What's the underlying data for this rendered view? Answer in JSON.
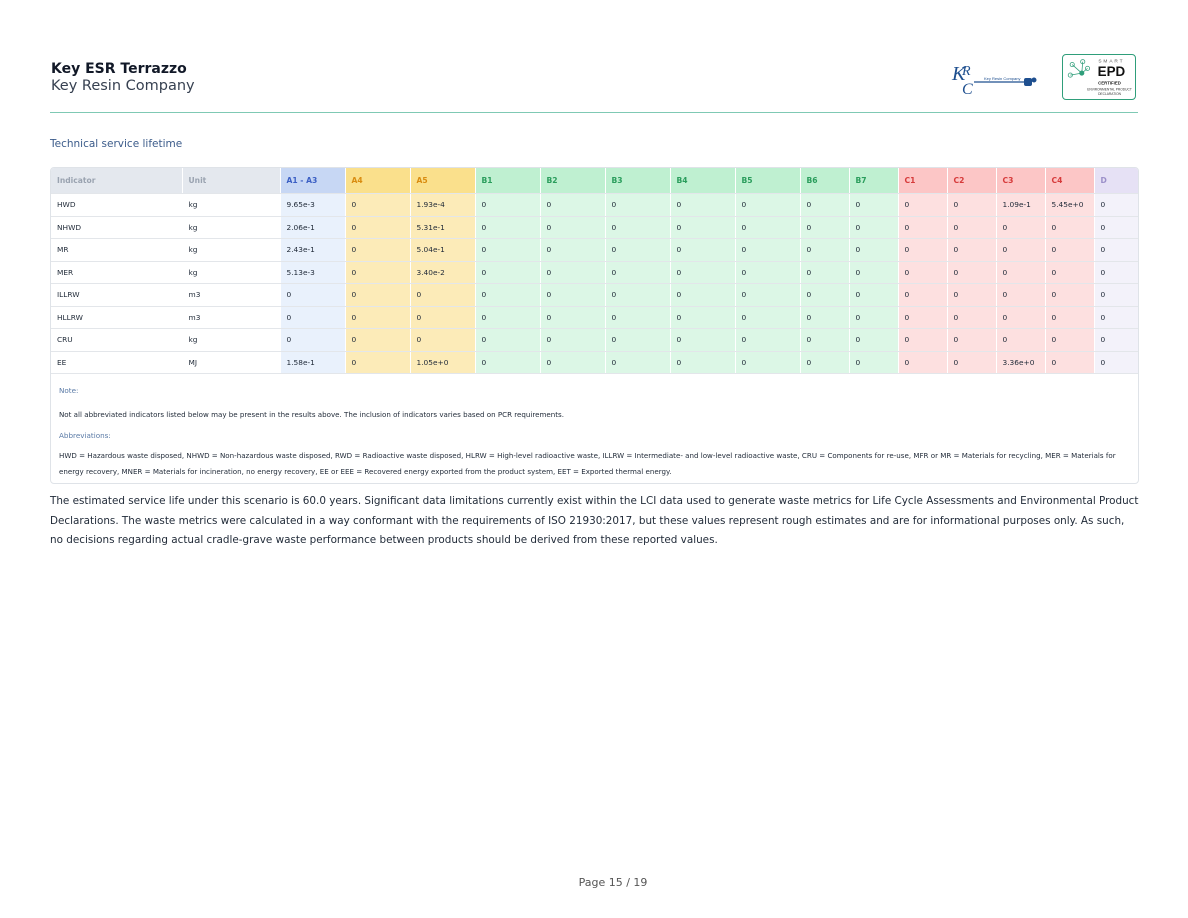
{
  "header": {
    "title": "Key ESR Terrazzo",
    "company": "Key Resin Company",
    "krc_logo_text": "Key Resin Company",
    "epd_logo": {
      "smart": "SMART",
      "epd": "EPD",
      "certified": "CERTIFIED",
      "sub1": "ENVIRONMENTAL PRODUCT",
      "sub2": "DECLARATION"
    }
  },
  "section_title": "Technical service lifetime",
  "table": {
    "columns": [
      {
        "label": "Indicator",
        "group": "lbl"
      },
      {
        "label": "Unit",
        "group": "lbl"
      },
      {
        "label": "A1 - A3",
        "group": "a13"
      },
      {
        "label": "A4",
        "group": "a45"
      },
      {
        "label": "A5",
        "group": "a45"
      },
      {
        "label": "B1",
        "group": "b"
      },
      {
        "label": "B2",
        "group": "b"
      },
      {
        "label": "B3",
        "group": "b"
      },
      {
        "label": "B4",
        "group": "b"
      },
      {
        "label": "B5",
        "group": "b"
      },
      {
        "label": "B6",
        "group": "b"
      },
      {
        "label": "B7",
        "group": "b"
      },
      {
        "label": "C1",
        "group": "c"
      },
      {
        "label": "C2",
        "group": "c"
      },
      {
        "label": "C3",
        "group": "c"
      },
      {
        "label": "C4",
        "group": "c"
      },
      {
        "label": "D",
        "group": "d"
      }
    ],
    "rows": [
      [
        "HWD",
        "kg",
        "9.65e-3",
        "0",
        "1.93e-4",
        "0",
        "0",
        "0",
        "0",
        "0",
        "0",
        "0",
        "0",
        "0",
        "1.09e-1",
        "5.45e+0",
        "0"
      ],
      [
        "NHWD",
        "kg",
        "2.06e-1",
        "0",
        "5.31e-1",
        "0",
        "0",
        "0",
        "0",
        "0",
        "0",
        "0",
        "0",
        "0",
        "0",
        "0",
        "0"
      ],
      [
        "MR",
        "kg",
        "2.43e-1",
        "0",
        "5.04e-1",
        "0",
        "0",
        "0",
        "0",
        "0",
        "0",
        "0",
        "0",
        "0",
        "0",
        "0",
        "0"
      ],
      [
        "MER",
        "kg",
        "5.13e-3",
        "0",
        "3.40e-2",
        "0",
        "0",
        "0",
        "0",
        "0",
        "0",
        "0",
        "0",
        "0",
        "0",
        "0",
        "0"
      ],
      [
        "ILLRW",
        "m3",
        "0",
        "0",
        "0",
        "0",
        "0",
        "0",
        "0",
        "0",
        "0",
        "0",
        "0",
        "0",
        "0",
        "0",
        "0"
      ],
      [
        "HLLRW",
        "m3",
        "0",
        "0",
        "0",
        "0",
        "0",
        "0",
        "0",
        "0",
        "0",
        "0",
        "0",
        "0",
        "0",
        "0",
        "0"
      ],
      [
        "CRU",
        "kg",
        "0",
        "0",
        "0",
        "0",
        "0",
        "0",
        "0",
        "0",
        "0",
        "0",
        "0",
        "0",
        "0",
        "0",
        "0"
      ],
      [
        "EE",
        "MJ",
        "1.58e-1",
        "0",
        "1.05e+0",
        "0",
        "0",
        "0",
        "0",
        "0",
        "0",
        "0",
        "0",
        "0",
        "3.36e+0",
        "0",
        "0"
      ]
    ]
  },
  "notes": {
    "note_label": "Note:",
    "note_text": "Not all abbreviated indicators listed below may be present in the results above. The inclusion of indicators varies based on PCR requirements.",
    "abbr_label": "Abbreviations:",
    "abbr_text": "HWD = Hazardous waste disposed, NHWD = Non-hazardous waste disposed, RWD = Radioactive waste disposed, HLRW = High-level radioactive waste, ILLRW = Intermediate- and low-level radioactive waste, CRU = Components for re-use, MFR or MR = Materials for recycling, MER = Materials for energy recovery, MNER = Materials for incineration, no energy recovery, EE or EEE = Recovered energy exported from the product system, EET = Exported thermal energy."
  },
  "scenario_text": "The estimated service life under this scenario is 60.0 years. Significant data limitations currently exist within the LCI data used to generate waste metrics for Life Cycle Assessments and Environmental Product Declarations. The waste metrics were calculated in a way conformant with the requirements of ISO 21930:2017, but these values represent rough estimates and are for informational purposes only. As such, no decisions regarding actual cradle-grave waste performance between products should be derived from these reported values.",
  "footer": {
    "page": "Page 15 / 19"
  },
  "colors": {
    "accent_line": "#7fc9b4",
    "a13": "#c7d7f4",
    "a45": "#fae08c",
    "b": "#bff0d1",
    "c": "#fcc6c6",
    "d": "#e6e1f5"
  },
  "icons": [
    "krc-logo-icon",
    "smart-epd-logo-icon"
  ]
}
